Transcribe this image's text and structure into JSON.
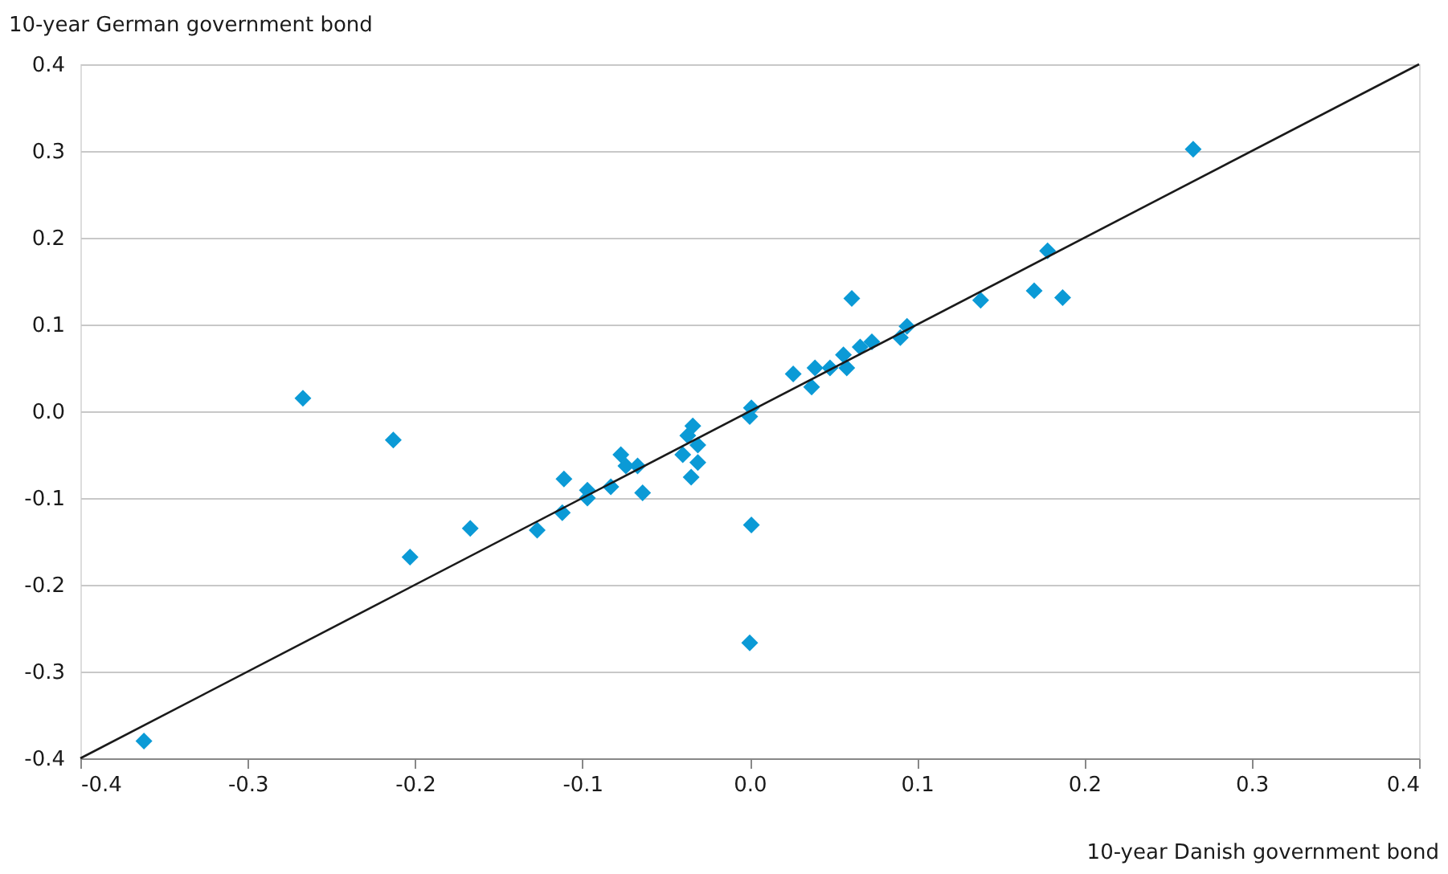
{
  "chart_data": {
    "type": "scatter",
    "xlabel": "10-year Danish government bond",
    "ylabel": "10-year German government bond",
    "xlim": [
      -0.4,
      0.4
    ],
    "ylim": [
      -0.4,
      0.4
    ],
    "xticks": [
      {
        "value": -0.4,
        "label": "-0.4"
      },
      {
        "value": -0.3,
        "label": "-0.3"
      },
      {
        "value": -0.2,
        "label": "-0.2"
      },
      {
        "value": -0.1,
        "label": "-0.1"
      },
      {
        "value": 0,
        "label": "0.0"
      },
      {
        "value": 0.1,
        "label": "0.1"
      },
      {
        "value": 0.2,
        "label": "0.2"
      },
      {
        "value": 0.3,
        "label": "0.3"
      },
      {
        "value": 0.4,
        "label": "0.4"
      }
    ],
    "yticks": [
      {
        "value": -0.4,
        "label": "-0.4"
      },
      {
        "value": -0.3,
        "label": "-0.3"
      },
      {
        "value": -0.2,
        "label": "-0.2"
      },
      {
        "value": -0.1,
        "label": "-0.1"
      },
      {
        "value": 0,
        "label": "0.0"
      },
      {
        "value": 0.1,
        "label": "0.1"
      },
      {
        "value": 0.2,
        "label": "0.2"
      },
      {
        "value": 0.3,
        "label": "0.3"
      },
      {
        "value": 0.4,
        "label": "0.4"
      }
    ],
    "grid": "y",
    "marker": "diamond",
    "series": [
      {
        "color": "#0b9ad6",
        "x": [
          0.265,
          0.178,
          0.17,
          0.187,
          0.138,
          0.061,
          0.094,
          0.09,
          0.073,
          0.066,
          0.056,
          0.058,
          0.048,
          0.039,
          0.037,
          0.026,
          0.001,
          0.0,
          0.001,
          0.0,
          -0.034,
          -0.037,
          -0.04,
          -0.031,
          -0.031,
          -0.035,
          -0.077,
          -0.074,
          -0.067,
          -0.083,
          -0.064,
          -0.097,
          -0.097,
          -0.111,
          -0.112,
          -0.127,
          -0.167,
          -0.203,
          -0.213,
          -0.267,
          -0.362
        ],
        "values": [
          0.302,
          0.185,
          0.139,
          0.131,
          0.128,
          0.13,
          0.098,
          0.085,
          0.08,
          0.074,
          0.065,
          0.05,
          0.05,
          0.05,
          0.028,
          0.043,
          0.004,
          -0.006,
          -0.131,
          -0.267,
          -0.017,
          -0.028,
          -0.05,
          -0.039,
          -0.059,
          -0.076,
          -0.05,
          -0.063,
          -0.063,
          -0.087,
          -0.094,
          -0.091,
          -0.1,
          -0.078,
          -0.117,
          -0.137,
          -0.135,
          -0.168,
          -0.033,
          0.015,
          -0.38
        ]
      },
      {
        "type": "line",
        "color": "#1a1a1a",
        "line_style": "solid",
        "marker": "none",
        "x": [
          -0.4,
          0.4
        ],
        "values": [
          -0.4,
          0.4
        ]
      }
    ]
  }
}
